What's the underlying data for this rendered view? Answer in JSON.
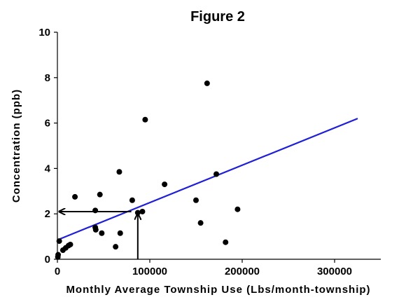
{
  "chart_data": {
    "type": "scatter",
    "title": "Figure 2",
    "xlabel": "Monthly Average Township Use (Lbs/month-township)",
    "ylabel": "Concentration (ppb)",
    "xlim": [
      0,
      350000
    ],
    "ylim": [
      0,
      10
    ],
    "x_ticks": [
      0,
      100000,
      200000,
      300000
    ],
    "x_tick_labels": [
      "0",
      "100000",
      "200000",
      "300000"
    ],
    "y_ticks": [
      0,
      2,
      4,
      6,
      8,
      10
    ],
    "y_tick_labels": [
      "0",
      "2",
      "4",
      "6",
      "8",
      "10"
    ],
    "grid": false,
    "points": [
      {
        "x": 500,
        "y": 0.1
      },
      {
        "x": 800,
        "y": 0.2
      },
      {
        "x": 2000,
        "y": 0.8
      },
      {
        "x": 6000,
        "y": 0.4
      },
      {
        "x": 9000,
        "y": 0.5
      },
      {
        "x": 12000,
        "y": 0.6
      },
      {
        "x": 14000,
        "y": 0.65
      },
      {
        "x": 19000,
        "y": 2.75
      },
      {
        "x": 41000,
        "y": 2.15
      },
      {
        "x": 41000,
        "y": 1.4
      },
      {
        "x": 41500,
        "y": 1.3
      },
      {
        "x": 46000,
        "y": 2.85
      },
      {
        "x": 48000,
        "y": 1.15
      },
      {
        "x": 63000,
        "y": 0.55
      },
      {
        "x": 67000,
        "y": 3.85
      },
      {
        "x": 68000,
        "y": 1.15
      },
      {
        "x": 81000,
        "y": 2.6
      },
      {
        "x": 87000,
        "y": 2.05
      },
      {
        "x": 92000,
        "y": 2.1
      },
      {
        "x": 95000,
        "y": 6.15
      },
      {
        "x": 116000,
        "y": 3.3
      },
      {
        "x": 150000,
        "y": 2.6
      },
      {
        "x": 155000,
        "y": 1.6
      },
      {
        "x": 162000,
        "y": 7.75
      },
      {
        "x": 172000,
        "y": 3.75
      },
      {
        "x": 182000,
        "y": 0.75
      },
      {
        "x": 195000,
        "y": 2.2
      }
    ],
    "trendline": {
      "x": [
        0,
        325000
      ],
      "y": [
        0.85,
        6.2
      ],
      "color": "#1f1fd6"
    },
    "annotations": [
      {
        "type": "arrow",
        "direction": "up",
        "from": [
          87000,
          0
        ],
        "to": [
          87000,
          2.0
        ]
      },
      {
        "type": "arrow",
        "direction": "left",
        "from": [
          80000,
          2.1
        ],
        "to": [
          2000,
          2.1
        ]
      }
    ],
    "point_color": "#000000"
  }
}
